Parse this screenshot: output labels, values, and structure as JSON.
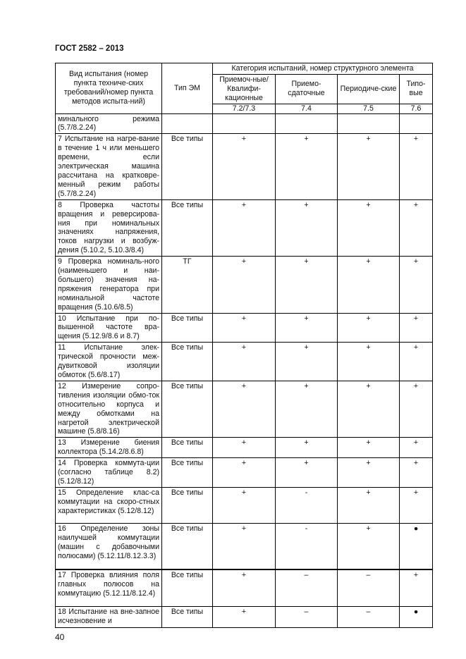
{
  "header": "ГОСТ 2582 – 2013",
  "page_number": "40",
  "table": {
    "col_name": "Вид испытания (номер пункта техниче-ских требований/номер пункта методов испыта-ний)",
    "col_type": "Тип ЭМ",
    "group": "Категория испытаний, номер структурного элемента",
    "categories": [
      {
        "label": "Приемоч-ные/Квалифи-кационные",
        "num": "7.2/7.3"
      },
      {
        "label": "Приемо-сдаточные",
        "num": "7.4"
      },
      {
        "label": "Периодиче-ские",
        "num": "7.5"
      },
      {
        "label": "Типо-вые",
        "num": "7.6"
      }
    ],
    "rows": [
      {
        "name": "минального режима (5.7/8.2.24)",
        "type": "",
        "v": [
          "",
          "",
          "",
          ""
        ]
      },
      {
        "name": "7 Испытание на нагре-вание в течение 1 ч или меньшего времени, если электрическая машина рассчитана на кратковре-менный режим работы (5.7/8.2.24)",
        "type": "Все типы",
        "v": [
          "+",
          "+",
          "+",
          "+"
        ]
      },
      {
        "name": "8 Проверка частоты вращения и реверсирова-ния при номинальных значениях напряжения, токов нагрузки и возбуж-дения (5.10.2, 5.10.3/8.4)",
        "type": "Все типы",
        "v": [
          "+",
          "+",
          "+",
          "+"
        ]
      },
      {
        "name": "9 Проверка номиналь-ного (наименьшего и наи-большего) значения на-пряжения генератора при номинальной частоте вращения (5.10.6/8.5)",
        "type": "ТГ",
        "v": [
          "+",
          "+",
          "+",
          "+"
        ]
      },
      {
        "name": "10 Испытание при по-вышенной частоте вра-щения (5.12.9/8.6 и 8.7)",
        "type": "Все типы",
        "v": [
          "+",
          "+",
          "+",
          "+"
        ]
      },
      {
        "name": "11 Испытание элек-трической прочности меж-дувитковой изоляции обмоток (5.6/8.17)",
        "type": "Все типы",
        "v": [
          "+",
          "+",
          "+",
          "+"
        ]
      },
      {
        "name": "12 Измерение сопро-тивления изоляции обмо-ток относительно корпуса и между обмотками на нагретой электрической машине (5.8/8.16)",
        "type": "Все типы",
        "v": [
          "+",
          "+",
          "+",
          "+"
        ]
      },
      {
        "name": "13 Измерение биения коллектора (5.14.2/8.6.8)",
        "type": "Все типы",
        "v": [
          "+",
          "+",
          "+",
          "+"
        ]
      },
      {
        "name": "14 Проверка коммута-ции (согласно таблице 8.2) (5.12/8.12)",
        "type": "Все типы",
        "v": [
          "+",
          "+",
          "+",
          "+"
        ]
      },
      {
        "name": "15 Определение клас-са коммутации на скоро-стных характеристиках (5.12/8.12)",
        "type": "Все типы",
        "v": [
          "+",
          "-",
          "+",
          "+"
        ]
      },
      {
        "name": "16 Определение зоны наилучшей коммутации (машин с добавочными полюсами) (5.12.11/8.12.3.3)",
        "type": "Все типы",
        "v": [
          "+",
          "-",
          "+",
          "●"
        ]
      },
      {
        "name": "17 Проверка влияния поля главных полюсов на коммутацию (5.12.11/8.12.4)",
        "type": "Все типы",
        "v": [
          "+",
          "–",
          "–",
          "+"
        ]
      },
      {
        "name": "18 Испытание на вне-запное исчезновение и",
        "type": "Все типы",
        "v": [
          "+",
          "–",
          "–",
          "●"
        ]
      }
    ]
  }
}
